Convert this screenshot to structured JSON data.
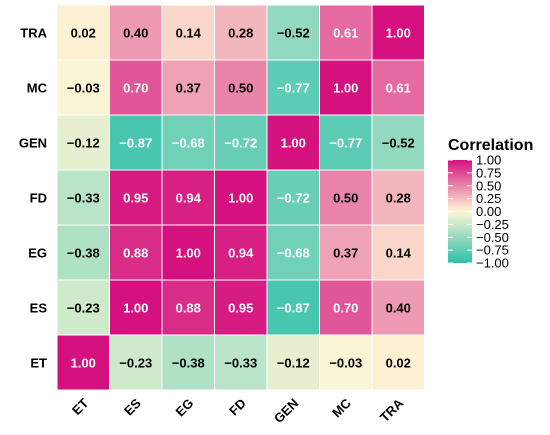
{
  "chart_data": {
    "type": "heatmap",
    "title": "",
    "xlabel": "",
    "ylabel": "",
    "x_categories": [
      "ET",
      "ES",
      "EG",
      "FD",
      "GEN",
      "MC",
      "TRA"
    ],
    "y_categories_top_to_bottom": [
      "TRA",
      "MC",
      "GEN",
      "FD",
      "EG",
      "ES",
      "ET"
    ],
    "values": [
      [
        0.02,
        0.4,
        0.14,
        0.28,
        -0.52,
        0.61,
        1.0
      ],
      [
        -0.03,
        0.7,
        0.37,
        0.5,
        -0.77,
        1.0,
        0.61
      ],
      [
        -0.12,
        -0.87,
        -0.68,
        -0.72,
        1.0,
        -0.77,
        -0.52
      ],
      [
        -0.33,
        0.95,
        0.94,
        1.0,
        -0.72,
        0.5,
        0.28
      ],
      [
        -0.38,
        0.88,
        1.0,
        0.94,
        -0.68,
        0.37,
        0.14
      ],
      [
        -0.23,
        1.0,
        0.88,
        0.95,
        -0.87,
        0.7,
        0.4
      ],
      [
        1.0,
        -0.23,
        -0.38,
        -0.33,
        -0.12,
        -0.03,
        0.02
      ]
    ],
    "labels": [
      [
        "0.02",
        "0.40",
        "0.14",
        "0.28",
        "−0.52",
        "0.61",
        "1.00"
      ],
      [
        "−0.03",
        "0.70",
        "0.37",
        "0.50",
        "−0.77",
        "1.00",
        "0.61"
      ],
      [
        "−0.12",
        "−0.87",
        "−0.68",
        "−0.72",
        "1.00",
        "−0.77",
        "−0.52"
      ],
      [
        "−0.33",
        "0.95",
        "0.94",
        "1.00",
        "−0.72",
        "0.50",
        "0.28"
      ],
      [
        "−0.38",
        "0.88",
        "1.00",
        "0.94",
        "−0.68",
        "0.37",
        "0.14"
      ],
      [
        "−0.23",
        "1.00",
        "0.88",
        "0.95",
        "−0.87",
        "0.70",
        "0.40"
      ],
      [
        "1.00",
        "−0.23",
        "−0.38",
        "−0.33",
        "−0.12",
        "−0.03",
        "0.02"
      ]
    ],
    "value_range": [
      -1,
      1
    ],
    "colors": {
      "low": "#2dbfaa",
      "mid": "#fff6d5",
      "high": "#d4117f"
    },
    "legend": {
      "title": "Correlation",
      "placement": "right",
      "ticks": [
        1.0,
        0.75,
        0.5,
        0.25,
        0.0,
        -0.25,
        -0.5,
        -0.75,
        -1.0
      ],
      "tick_labels": [
        "1.00",
        "0.75",
        "0.50",
        "0.25",
        "0.00",
        "−0.25",
        "−0.50",
        "−0.75",
        "−1.00"
      ]
    },
    "grid": false
  }
}
